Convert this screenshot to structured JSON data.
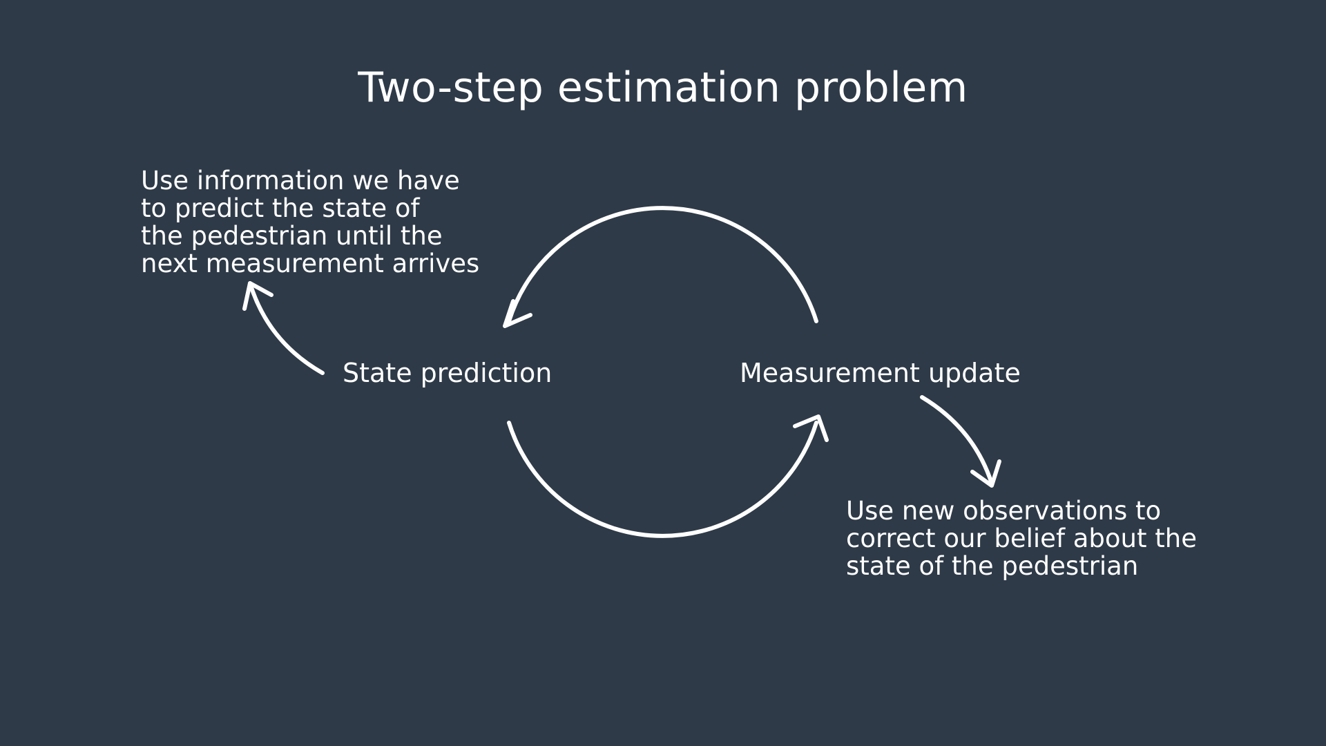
{
  "title": "Two-step estimation problem",
  "nodes": {
    "state_prediction": "State prediction",
    "measurement_update": "Measurement update"
  },
  "notes": {
    "prediction": [
      "Use information we have",
      "to predict the state of",
      "the pedestrian until the",
      "next measurement arrives"
    ],
    "update": [
      "Use new observations to",
      "correct our belief about the",
      "state of the pedestrian"
    ]
  },
  "colors": {
    "background": "#2e3a48",
    "foreground": "#ffffff"
  }
}
